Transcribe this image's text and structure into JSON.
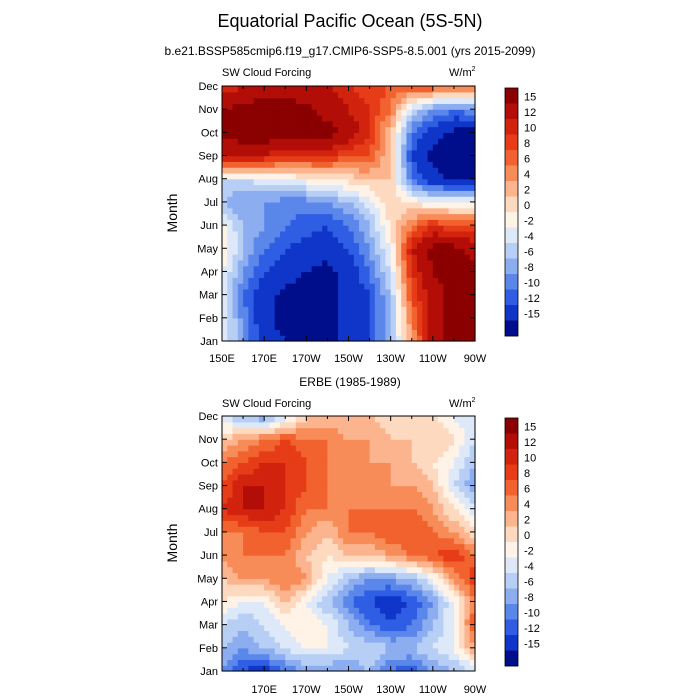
{
  "figure": {
    "title": "Equatorial Pacific Ocean (5S-5N)",
    "unit_base": "W/m",
    "unit_exp": "2"
  },
  "chart_data": [
    {
      "type": "heatmap",
      "subtitle": "b.e21.BSSP585cmip6.f19_g17.CMIP6-SSP5-8.5.001 (yrs 2015-2099)",
      "variable_label": "SW Cloud Forcing",
      "ylabel": "Month",
      "xlabel": "",
      "x_ticks": [
        "150E",
        "170E",
        "170W",
        "150W",
        "130W",
        "110W",
        "90W"
      ],
      "y_ticks": [
        "Jan",
        "Feb",
        "Mar",
        "Apr",
        "May",
        "Jun",
        "Jul",
        "Aug",
        "Sep",
        "Oct",
        "Nov",
        "Dec"
      ],
      "xlim": [
        150,
        270
      ],
      "contour_levels": [
        -15,
        -12,
        -10,
        -8,
        -6,
        -4,
        -2,
        0,
        2,
        4,
        6,
        8,
        10,
        12,
        15
      ],
      "grid_months": [
        "Jan",
        "Feb",
        "Mar",
        "Apr",
        "May",
        "Jun",
        "Jul",
        "Aug",
        "Sep",
        "Oct",
        "Nov",
        "Dec"
      ],
      "grid_lons": [
        150,
        160,
        170,
        180,
        190,
        200,
        210,
        220,
        230,
        240,
        250,
        260,
        270
      ],
      "values": [
        [
          -2,
          -8,
          -14,
          -15,
          -15,
          -16,
          -14,
          -12,
          -6,
          4,
          14,
          16,
          16
        ],
        [
          -1,
          -9,
          -14,
          -16,
          -16,
          -16,
          -14,
          -12,
          -6,
          6,
          14,
          16,
          17
        ],
        [
          -3,
          -10,
          -14,
          -16,
          -16,
          -16,
          -14,
          -12,
          -6,
          8,
          14,
          16,
          17
        ],
        [
          -2,
          -8,
          -12,
          -14,
          -15,
          -16,
          -14,
          -10,
          -4,
          10,
          15,
          16,
          16
        ],
        [
          0,
          -6,
          -10,
          -12,
          -13,
          -14,
          -12,
          -8,
          -2,
          12,
          16,
          16,
          14
        ],
        [
          -1,
          -6,
          -8,
          -10,
          -11,
          -12,
          -10,
          -6,
          0,
          6,
          10,
          8,
          8
        ],
        [
          -6,
          -8,
          -8,
          -9,
          -9,
          -8,
          -6,
          -3,
          2,
          0,
          -2,
          -2,
          -2
        ],
        [
          -4,
          -4,
          -3,
          -2,
          -1,
          0,
          1,
          2,
          2,
          -10,
          -14,
          -16,
          -16
        ],
        [
          12,
          12,
          12,
          10,
          10,
          10,
          8,
          8,
          2,
          -12,
          -16,
          -16,
          -17
        ],
        [
          16,
          17,
          17,
          17,
          17,
          16,
          14,
          10,
          2,
          -10,
          -14,
          -16,
          -16
        ],
        [
          15,
          16,
          17,
          17,
          16,
          14,
          12,
          10,
          6,
          -4,
          -8,
          -10,
          -8
        ],
        [
          10,
          12,
          13,
          13,
          12,
          12,
          10,
          9,
          8,
          8,
          8,
          8,
          6
        ]
      ]
    },
    {
      "type": "heatmap",
      "subtitle": "ERBE (1985-1989)",
      "variable_label": "SW Cloud Forcing",
      "ylabel": "Month",
      "xlabel": "",
      "x_ticks": [
        "170E",
        "170W",
        "150W",
        "130W",
        "110W",
        "90W"
      ],
      "y_ticks": [
        "Jan",
        "Feb",
        "Mar",
        "Apr",
        "May",
        "Jun",
        "Jul",
        "Aug",
        "Sep",
        "Oct",
        "Nov",
        "Dec"
      ],
      "xlim": [
        150,
        270
      ],
      "contour_levels": [
        -15,
        -12,
        -10,
        -8,
        -6,
        -4,
        -2,
        0,
        2,
        4,
        6,
        8,
        10,
        12,
        15
      ],
      "grid_months": [
        "Jan",
        "Feb",
        "Mar",
        "Apr",
        "May",
        "Jun",
        "Jul",
        "Aug",
        "Sep",
        "Oct",
        "Nov",
        "Dec"
      ],
      "grid_lons": [
        150,
        160,
        170,
        180,
        190,
        200,
        210,
        220,
        230,
        240,
        250,
        260,
        270
      ],
      "values": [
        [
          -8,
          -12,
          -14,
          -10,
          -8,
          -8,
          -8,
          -6,
          -10,
          -12,
          -8,
          -6,
          -4
        ],
        [
          -6,
          -8,
          -6,
          -4,
          -2,
          -2,
          -4,
          -4,
          -6,
          -6,
          -4,
          -2,
          4
        ],
        [
          -4,
          -6,
          -4,
          -2,
          0,
          -2,
          -6,
          -10,
          -12,
          -10,
          -6,
          -2,
          8
        ],
        [
          0,
          -2,
          -2,
          2,
          -2,
          -6,
          -10,
          -12,
          -14,
          -12,
          -8,
          -2,
          6
        ],
        [
          2,
          4,
          4,
          6,
          4,
          -2,
          -6,
          -8,
          -8,
          -6,
          -2,
          4,
          10
        ],
        [
          4,
          6,
          6,
          6,
          2,
          0,
          2,
          2,
          4,
          6,
          8,
          10,
          6
        ],
        [
          6,
          6,
          8,
          8,
          4,
          2,
          6,
          6,
          8,
          8,
          6,
          4,
          0
        ],
        [
          10,
          12,
          12,
          10,
          6,
          6,
          6,
          6,
          6,
          6,
          4,
          0,
          -4
        ],
        [
          8,
          12,
          12,
          10,
          8,
          6,
          4,
          4,
          4,
          4,
          2,
          -4,
          -8
        ],
        [
          6,
          8,
          10,
          10,
          8,
          6,
          4,
          4,
          4,
          2,
          0,
          -2,
          -6
        ],
        [
          2,
          4,
          6,
          8,
          6,
          6,
          4,
          4,
          2,
          2,
          2,
          0,
          -4
        ],
        [
          -4,
          -6,
          -8,
          -4,
          2,
          2,
          2,
          2,
          0,
          2,
          0,
          -2,
          -4
        ]
      ]
    }
  ],
  "colorbar": {
    "labels": [
      "15",
      "12",
      "10",
      "8",
      "6",
      "4",
      "2",
      "0",
      "-2",
      "-4",
      "-6",
      "-8",
      "-10",
      "-12",
      "-15"
    ],
    "colors": [
      "#8b0000",
      "#b30d07",
      "#d2230f",
      "#e63c17",
      "#f2622e",
      "#f88c58",
      "#fbb48d",
      "#fdd9c0",
      "#fff2e6",
      "#dde8f8",
      "#b7cef5",
      "#8cadf0",
      "#5b87ea",
      "#2f5ee4",
      "#0f36c8",
      "#000e8c"
    ]
  }
}
